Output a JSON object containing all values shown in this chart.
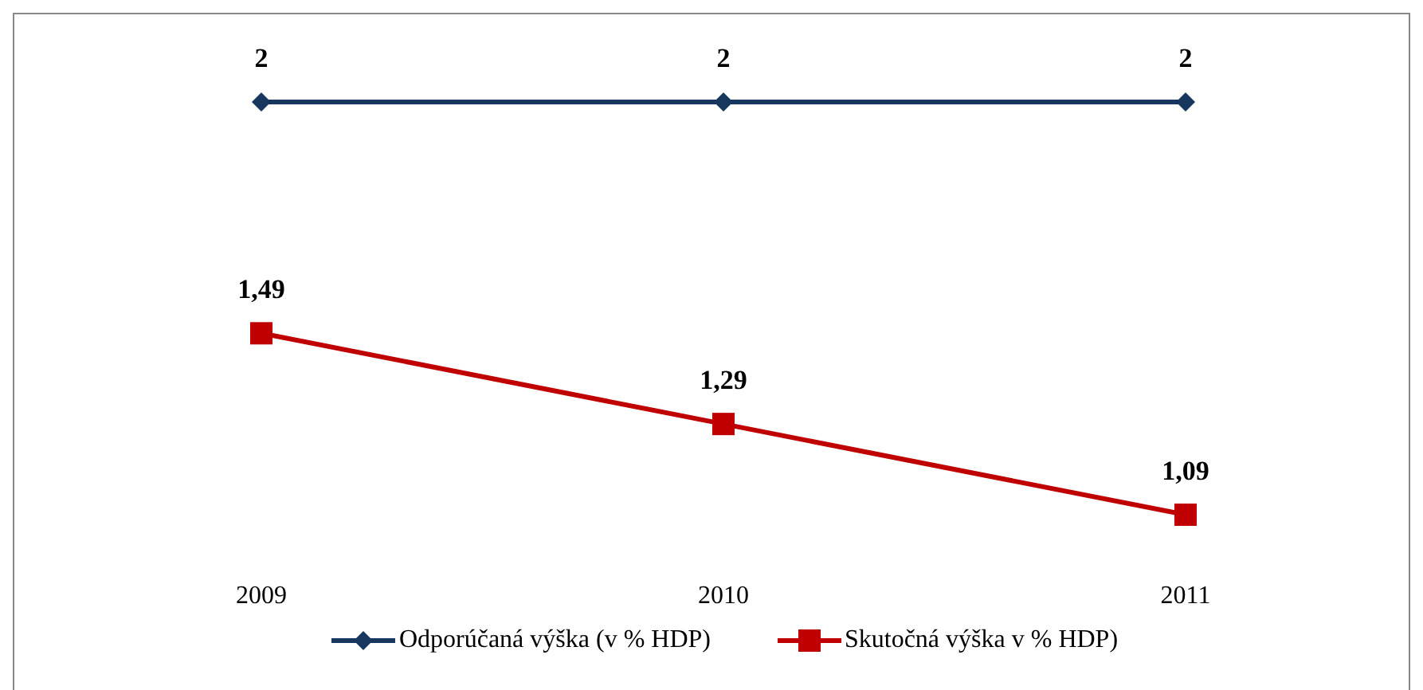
{
  "chart_data": {
    "type": "line",
    "categories": [
      "2009",
      "2010",
      "2011"
    ],
    "series": [
      {
        "name": "Odporúčaná výška (v % HDP)",
        "color": "#17375e",
        "values": [
          2,
          2,
          2
        ],
        "value_labels": [
          "2",
          "2",
          "2"
        ],
        "marker": "diamond"
      },
      {
        "name": "Skutočná výška v % HDP)",
        "color": "#c00000",
        "values": [
          1.49,
          1.29,
          1.09
        ],
        "value_labels": [
          "1,49",
          "1,29",
          "1,09"
        ],
        "marker": "square"
      }
    ],
    "legend": "bottom",
    "grid": false
  }
}
